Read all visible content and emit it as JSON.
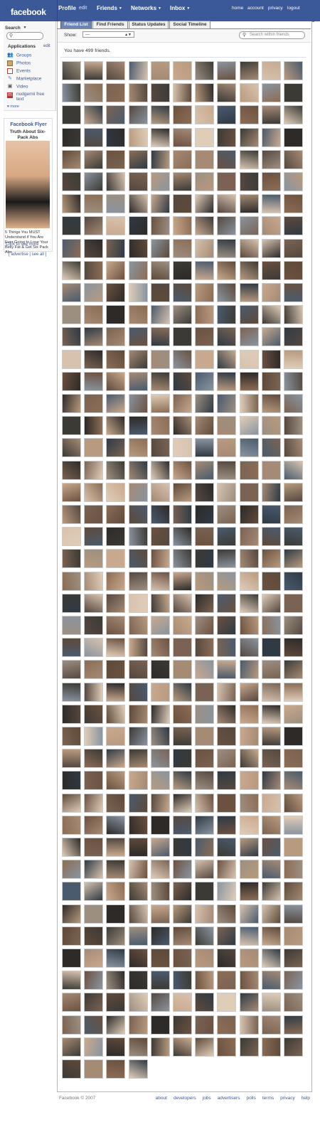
{
  "header": {
    "logo": "facebook",
    "nav": [
      {
        "label": "Profile"
      },
      {
        "label": "edit"
      },
      {
        "label": "Friends"
      },
      {
        "label": "Networks"
      },
      {
        "label": "Inbox"
      }
    ],
    "right_links": [
      "home",
      "account",
      "privacy",
      "logout"
    ]
  },
  "sidebar": {
    "search_label": "Search",
    "applications_label": "Applications",
    "applications_edit": "edit",
    "apps": [
      {
        "label": "Groups",
        "icon": "groups-icon"
      },
      {
        "label": "Photos",
        "icon": "photos-icon"
      },
      {
        "label": "Events",
        "icon": "events-icon"
      },
      {
        "label": "Marketplace",
        "icon": "marketplace-icon"
      },
      {
        "label": "Video",
        "icon": "video-icon"
      },
      {
        "label": "nudgemii free text",
        "icon": "nudgemii-icon"
      }
    ],
    "more": "more",
    "ad": {
      "header": "Facebook Flyer",
      "title": "Truth About Six-Pack Abs",
      "body": "5 Things You MUST Understand if You Are Ever Going to Lose Your Belly Fat & Get Six Pack Abs",
      "cta": "Click to see more",
      "advertise": "advertise",
      "see_all": "see all"
    }
  },
  "tabs": [
    {
      "label": "Friend List",
      "active": true
    },
    {
      "label": "Find Friends",
      "active": false
    },
    {
      "label": "Status Updates",
      "active": false
    },
    {
      "label": "Social Timeline",
      "active": false
    }
  ],
  "filter": {
    "show_label": "Show:",
    "show_value": "---",
    "search_placeholder": "Search within friends"
  },
  "friend_count_text": "You have 499 friends.",
  "friend_grid": {
    "rows": 46,
    "cols": 11,
    "last_row_count": 4,
    "special_icons": [
      "springbok-logo",
      "question-mark-placeholder"
    ]
  },
  "footer": {
    "copyright": "Facebook © 2007",
    "links": [
      "about",
      "developers",
      "jobs",
      "advertisers",
      "polls",
      "terms",
      "privacy",
      "help"
    ]
  },
  "colors": {
    "brand_blue": "#3b5998",
    "active_tab": "#6d84b4",
    "link": "#3b5998"
  }
}
